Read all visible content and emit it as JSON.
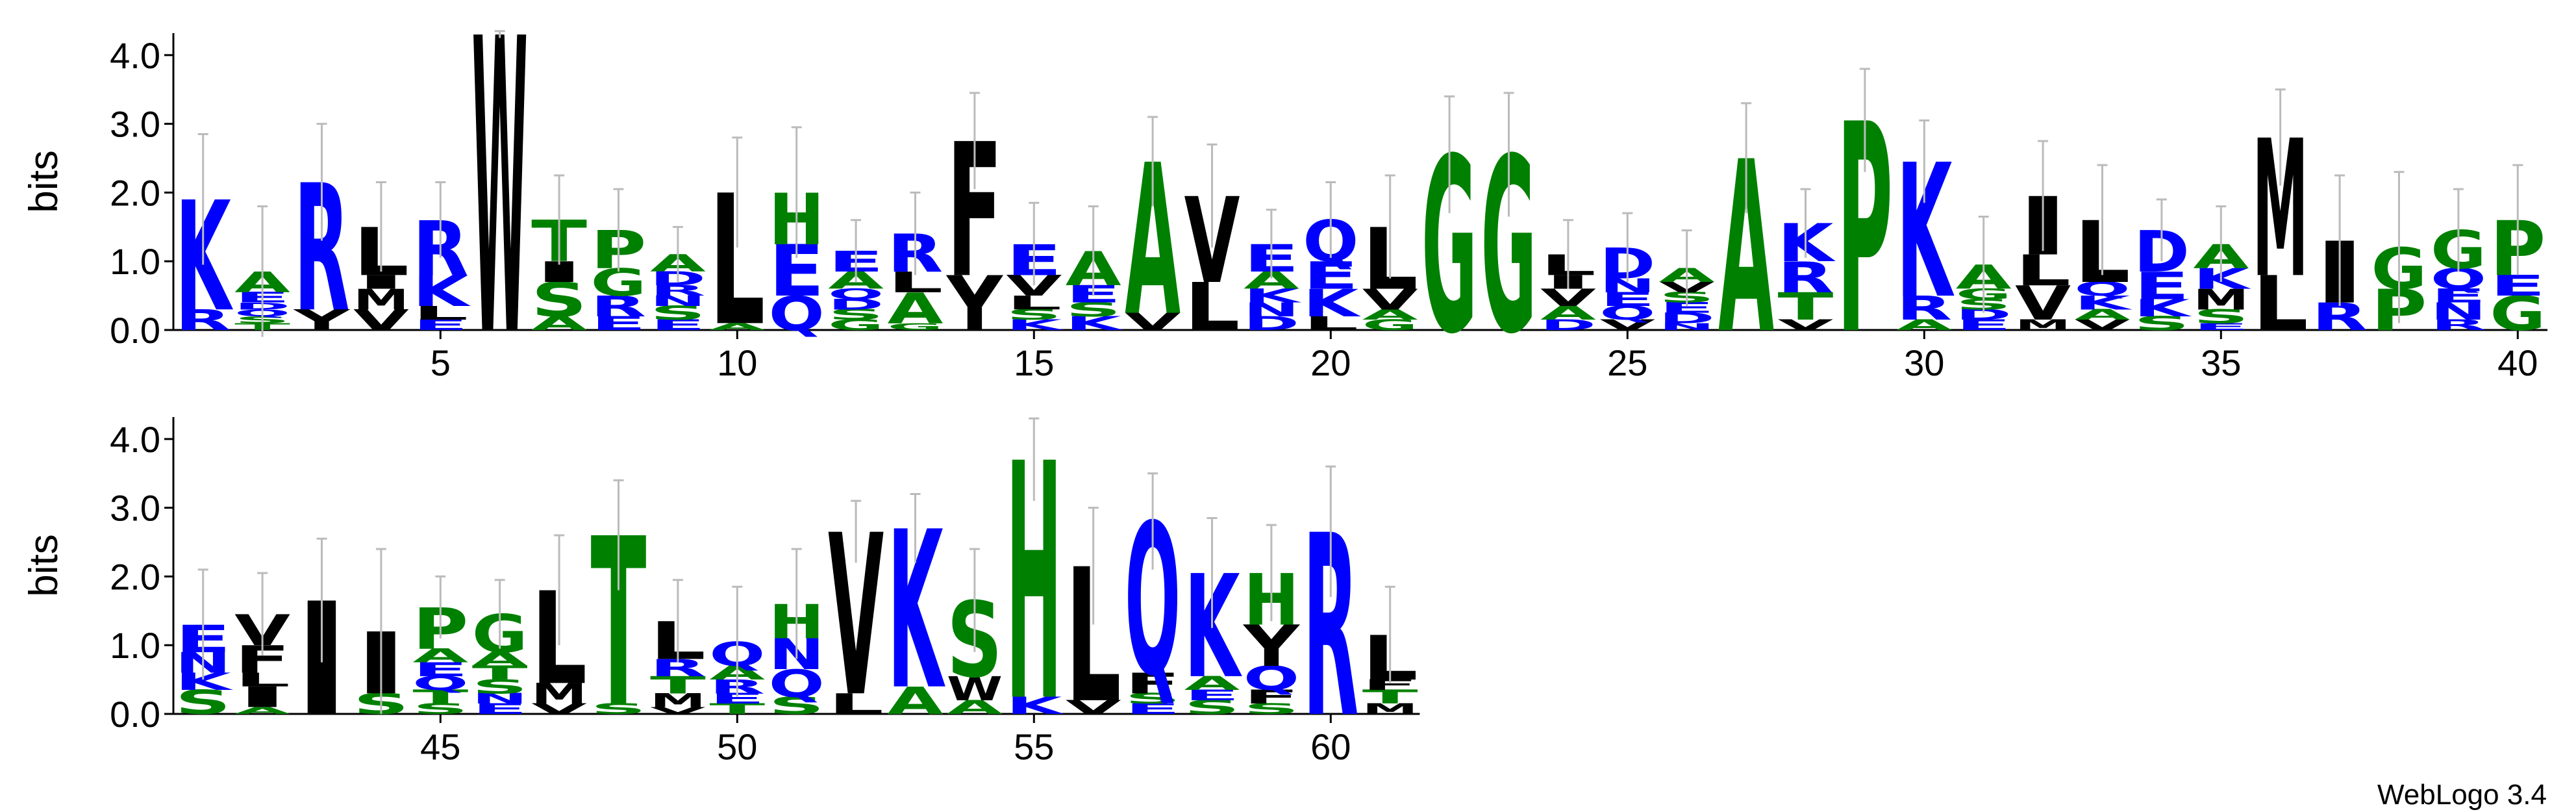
{
  "chart_data": [
    {
      "type": "logo",
      "y_label": "bits",
      "xlim": [
        0.5,
        40.5
      ],
      "ylim": [
        0,
        4.32
      ],
      "yticks": [
        {
          "value": 0,
          "label": "0.0"
        },
        {
          "value": 1,
          "label": "1.0"
        },
        {
          "value": 2,
          "label": "2.0"
        },
        {
          "value": 3,
          "label": "3.0"
        },
        {
          "value": 4,
          "label": "4.0"
        }
      ],
      "xticks": [
        5,
        10,
        15,
        20,
        25,
        30,
        35,
        40
      ],
      "stacks": [
        {
          "position": 1,
          "letters": [
            "R",
            "K"
          ],
          "heights": [
            0.3,
            1.6
          ],
          "error": 0.95
        },
        {
          "position": 2,
          "letters": [
            "T",
            "S",
            "Q",
            "D",
            "E",
            "A"
          ],
          "heights": [
            0.1,
            0.1,
            0.1,
            0.1,
            0.15,
            0.3
          ],
          "error": 0.95
        },
        {
          "position": 3,
          "letters": [
            "Y",
            "R"
          ],
          "heights": [
            0.3,
            1.85
          ],
          "error": 0.85
        },
        {
          "position": 4,
          "letters": [
            "V",
            "M",
            "I",
            "L"
          ],
          "heights": [
            0.3,
            0.3,
            0.2,
            0.7
          ],
          "error": 0.65
        },
        {
          "position": 5,
          "letters": [
            "E",
            "L",
            "K",
            "R"
          ],
          "heights": [
            0.15,
            0.2,
            0.45,
            0.8
          ],
          "error": 0.55
        },
        {
          "position": 6,
          "letters": [
            "W"
          ],
          "heights": [
            4.3
          ],
          "error": 0.05
        },
        {
          "position": 7,
          "letters": [
            "A",
            "S",
            "I",
            "T"
          ],
          "heights": [
            0.2,
            0.5,
            0.3,
            0.6
          ],
          "error": 0.65
        },
        {
          "position": 8,
          "letters": [
            "E",
            "R",
            "G",
            "P"
          ],
          "heights": [
            0.2,
            0.3,
            0.4,
            0.55
          ],
          "error": 0.6
        },
        {
          "position": 9,
          "letters": [
            "E",
            "S",
            "N",
            "R",
            "D",
            "A"
          ],
          "heights": [
            0.15,
            0.2,
            0.15,
            0.15,
            0.2,
            0.25
          ],
          "error": 0.4
        },
        {
          "position": 10,
          "letters": [
            "A",
            "L"
          ],
          "heights": [
            0.1,
            1.9
          ],
          "error": 0.8
        },
        {
          "position": 11,
          "letters": [
            "Q",
            "E",
            "H"
          ],
          "heights": [
            0.5,
            0.75,
            0.75
          ],
          "error": 0.95
        },
        {
          "position": 12,
          "letters": [
            "G",
            "S",
            "D",
            "Q",
            "A",
            "E"
          ],
          "heights": [
            0.15,
            0.15,
            0.15,
            0.15,
            0.25,
            0.3
          ],
          "error": 0.45
        },
        {
          "position": 13,
          "letters": [
            "G",
            "A",
            "L",
            "R"
          ],
          "heights": [
            0.1,
            0.45,
            0.3,
            0.55
          ],
          "error": 0.6
        },
        {
          "position": 14,
          "letters": [
            "Y",
            "F"
          ],
          "heights": [
            0.8,
            1.95
          ],
          "error": 0.7
        },
        {
          "position": 15,
          "letters": [
            "K",
            "S",
            "L",
            "V",
            "E"
          ],
          "heights": [
            0.15,
            0.15,
            0.2,
            0.3,
            0.45
          ],
          "error": 0.6
        },
        {
          "position": 16,
          "letters": [
            "K",
            "S",
            "E",
            "A"
          ],
          "heights": [
            0.2,
            0.2,
            0.25,
            0.5
          ],
          "error": 0.65
        },
        {
          "position": 17,
          "letters": [
            "V",
            "A"
          ],
          "heights": [
            0.25,
            2.2
          ],
          "error": 0.65
        },
        {
          "position": 18,
          "letters": [
            "L",
            "V"
          ],
          "heights": [
            0.7,
            1.25
          ],
          "error": 0.75
        },
        {
          "position": 19,
          "letters": [
            "D",
            "N",
            "K",
            "A",
            "E"
          ],
          "heights": [
            0.2,
            0.2,
            0.2,
            0.25,
            0.4
          ],
          "error": 0.5
        },
        {
          "position": 20,
          "letters": [
            "L",
            "K",
            "E",
            "Q"
          ],
          "heights": [
            0.2,
            0.4,
            0.4,
            0.6
          ],
          "error": 0.55
        },
        {
          "position": 21,
          "letters": [
            "G",
            "A",
            "V",
            "L"
          ],
          "heights": [
            0.15,
            0.15,
            0.3,
            0.9
          ],
          "error": 0.75
        },
        {
          "position": 22,
          "letters": [
            "G"
          ],
          "heights": [
            2.55
          ],
          "error": 0.85
        },
        {
          "position": 23,
          "letters": [
            "G"
          ],
          "heights": [
            2.55
          ],
          "error": 0.9
        },
        {
          "position": 24,
          "letters": [
            "D",
            "A",
            "V",
            "I",
            "L"
          ],
          "heights": [
            0.15,
            0.2,
            0.25,
            0.2,
            0.3
          ],
          "error": 0.5
        },
        {
          "position": 25,
          "letters": [
            "V",
            "Q",
            "E",
            "N",
            "D"
          ],
          "heights": [
            0.15,
            0.2,
            0.2,
            0.2,
            0.45
          ],
          "error": 0.5
        },
        {
          "position": 26,
          "letters": [
            "N",
            "D",
            "E",
            "S",
            "V",
            "A"
          ],
          "heights": [
            0.1,
            0.15,
            0.15,
            0.15,
            0.15,
            0.2
          ],
          "error": 0.55
        },
        {
          "position": 27,
          "letters": [
            "A"
          ],
          "heights": [
            2.5
          ],
          "error": 0.8
        },
        {
          "position": 28,
          "letters": [
            "V",
            "T",
            "R",
            "K"
          ],
          "heights": [
            0.15,
            0.4,
            0.45,
            0.55
          ],
          "error": 0.5
        },
        {
          "position": 29,
          "letters": [
            "P"
          ],
          "heights": [
            3.05
          ],
          "error": 0.75
        },
        {
          "position": 30,
          "letters": [
            "A",
            "R",
            "K"
          ],
          "heights": [
            0.15,
            0.35,
            1.95
          ],
          "error": 0.6
        },
        {
          "position": 31,
          "letters": [
            "E",
            "D",
            "S",
            "G",
            "A"
          ],
          "heights": [
            0.15,
            0.15,
            0.15,
            0.15,
            0.35
          ],
          "error": 0.7
        },
        {
          "position": 32,
          "letters": [
            "M",
            "V",
            "L",
            "I"
          ],
          "heights": [
            0.15,
            0.5,
            0.45,
            0.85
          ],
          "error": 0.8
        },
        {
          "position": 33,
          "letters": [
            "V",
            "A",
            "K",
            "Q",
            "L"
          ],
          "heights": [
            0.15,
            0.15,
            0.2,
            0.2,
            0.9
          ],
          "error": 0.8
        },
        {
          "position": 34,
          "letters": [
            "S",
            "K",
            "E",
            "D"
          ],
          "heights": [
            0.2,
            0.25,
            0.4,
            0.6
          ],
          "error": 0.45
        },
        {
          "position": 35,
          "letters": [
            "E",
            "S",
            "M",
            "K",
            "A"
          ],
          "heights": [
            0.1,
            0.2,
            0.3,
            0.3,
            0.35
          ],
          "error": 0.55
        },
        {
          "position": 36,
          "letters": [
            "L",
            "M"
          ],
          "heights": [
            0.8,
            2.0
          ],
          "error": 0.7
        },
        {
          "position": 37,
          "letters": [
            "R",
            "I"
          ],
          "heights": [
            0.4,
            0.9
          ],
          "error": 0.95
        },
        {
          "position": 38,
          "letters": [
            "P",
            "G"
          ],
          "heights": [
            0.6,
            0.6
          ],
          "error": 1.1
        },
        {
          "position": 39,
          "letters": [
            "R",
            "N",
            "E",
            "Q",
            "G"
          ],
          "heights": [
            0.15,
            0.25,
            0.2,
            0.3,
            0.55
          ],
          "error": 0.6
        },
        {
          "position": 40,
          "letters": [
            "G",
            "E",
            "P"
          ],
          "heights": [
            0.5,
            0.3,
            0.8
          ],
          "error": 0.8
        }
      ]
    },
    {
      "type": "logo",
      "y_label": "bits",
      "xlim": [
        40.5,
        61.5
      ],
      "ylim": [
        0,
        4.32
      ],
      "yticks": [
        {
          "value": 0,
          "label": "0.0"
        },
        {
          "value": 1,
          "label": "1.0"
        },
        {
          "value": 2,
          "label": "2.0"
        },
        {
          "value": 3,
          "label": "3.0"
        },
        {
          "value": 4,
          "label": "4.0"
        }
      ],
      "xticks": [
        45,
        50,
        55,
        60
      ],
      "stacks": [
        {
          "position": 41,
          "letters": [
            "S",
            "K",
            "N",
            "E"
          ],
          "heights": [
            0.35,
            0.25,
            0.3,
            0.4
          ],
          "error": 0.8
        },
        {
          "position": 42,
          "letters": [
            "A",
            "I",
            "L",
            "F",
            "V"
          ],
          "heights": [
            0.1,
            0.3,
            0.2,
            0.4,
            0.45
          ],
          "error": 0.6
        },
        {
          "position": 43,
          "letters": [
            "I"
          ],
          "heights": [
            1.65
          ],
          "error": 0.9
        },
        {
          "position": 44,
          "letters": [
            "S",
            "I"
          ],
          "heights": [
            0.3,
            0.9
          ],
          "error": 1.2
        },
        {
          "position": 45,
          "letters": [
            "S",
            "T",
            "Q",
            "E",
            "A",
            "P"
          ],
          "heights": [
            0.15,
            0.2,
            0.2,
            0.2,
            0.2,
            0.6
          ],
          "error": 0.45
        },
        {
          "position": 46,
          "letters": [
            "E",
            "N",
            "S",
            "T",
            "A",
            "G"
          ],
          "heights": [
            0.15,
            0.15,
            0.2,
            0.2,
            0.2,
            0.55
          ],
          "error": 0.5
        },
        {
          "position": 47,
          "letters": [
            "V",
            "M",
            "L"
          ],
          "heights": [
            0.15,
            0.3,
            1.35
          ],
          "error": 0.8
        },
        {
          "position": 48,
          "letters": [
            "S",
            "T"
          ],
          "heights": [
            0.15,
            2.45
          ],
          "error": 0.8
        },
        {
          "position": 49,
          "letters": [
            "V",
            "M",
            "T",
            "R",
            "L"
          ],
          "heights": [
            0.1,
            0.2,
            0.25,
            0.25,
            0.55
          ],
          "error": 0.6
        },
        {
          "position": 50,
          "letters": [
            "T",
            "E",
            "R",
            "A",
            "Q"
          ],
          "heights": [
            0.15,
            0.15,
            0.2,
            0.2,
            0.35
          ],
          "error": 0.8
        },
        {
          "position": 51,
          "letters": [
            "S",
            "Q",
            "N",
            "H"
          ],
          "heights": [
            0.25,
            0.4,
            0.45,
            0.5
          ],
          "error": 0.8
        },
        {
          "position": 52,
          "letters": [
            "L",
            "V"
          ],
          "heights": [
            0.3,
            2.35
          ],
          "error": 0.45
        },
        {
          "position": 53,
          "letters": [
            "A",
            "K"
          ],
          "heights": [
            0.4,
            2.3
          ],
          "error": 0.5
        },
        {
          "position": 54,
          "letters": [
            "A",
            "W",
            "S"
          ],
          "heights": [
            0.2,
            0.35,
            1.1
          ],
          "error": 0.75
        },
        {
          "position": 55,
          "letters": [
            "K",
            "H"
          ],
          "heights": [
            0.25,
            3.45
          ],
          "error": 0.6
        },
        {
          "position": 56,
          "letters": [
            "V",
            "L"
          ],
          "heights": [
            0.2,
            1.95
          ],
          "error": 0.85
        },
        {
          "position": 57,
          "letters": [
            "E",
            "S",
            "F",
            "Q"
          ],
          "heights": [
            0.15,
            0.15,
            0.3,
            2.2
          ],
          "error": 0.7
        },
        {
          "position": 58,
          "letters": [
            "S",
            "E",
            "A",
            "K"
          ],
          "heights": [
            0.2,
            0.15,
            0.2,
            1.5
          ],
          "error": 0.8
        },
        {
          "position": 59,
          "letters": [
            "S",
            "F",
            "Q",
            "Y",
            "H"
          ],
          "heights": [
            0.15,
            0.2,
            0.35,
            0.6,
            0.75
          ],
          "error": 0.7
        },
        {
          "position": 60,
          "letters": [
            "R"
          ],
          "heights": [
            2.65
          ],
          "error": 0.95
        },
        {
          "position": 61,
          "letters": [
            "M",
            "T",
            "F",
            "L"
          ],
          "heights": [
            0.15,
            0.2,
            0.15,
            0.65
          ],
          "error": 0.7
        }
      ]
    }
  ],
  "letter_colors": {
    "K": "#0000ff",
    "R": "#0000ff",
    "D": "#0000ff",
    "E": "#0000ff",
    "Q": "#0000ff",
    "N": "#0000ff",
    "H": "#008000",
    "G": "#008000",
    "A": "#008000",
    "P": "#008000",
    "S": "#008000",
    "T": "#008000",
    "L": "#000000",
    "I": "#000000",
    "V": "#000000",
    "M": "#000000",
    "F": "#000000",
    "W": "#000000",
    "Y": "#000000"
  },
  "footer": "WebLogo 3.4"
}
